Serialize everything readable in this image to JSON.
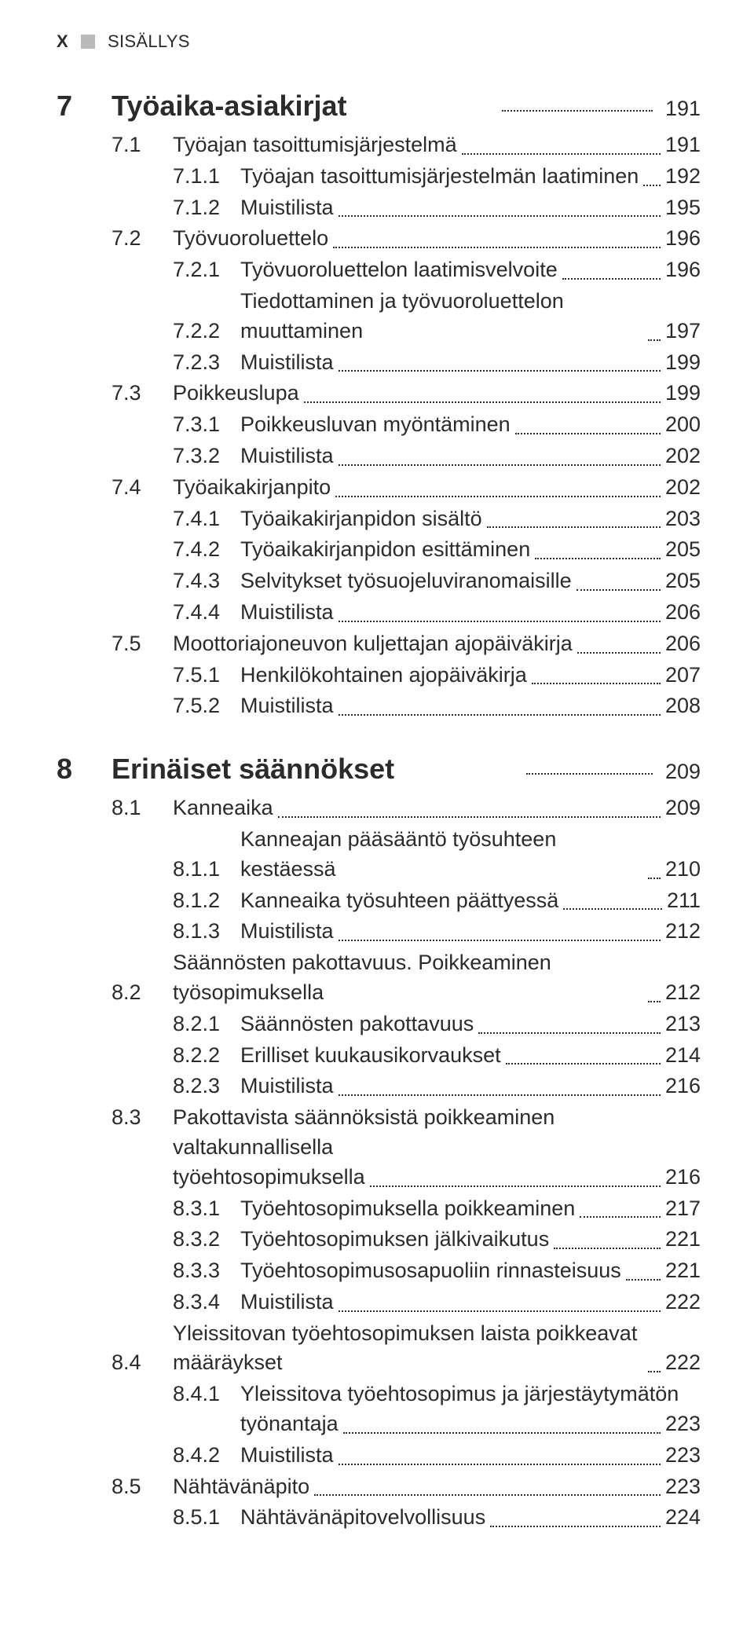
{
  "header": {
    "page_mark": "X",
    "label": "SISÄLLYS"
  },
  "chapters": [
    {
      "num": "7",
      "title": "Työaika-asiakirjat",
      "page": "191",
      "entries": [
        {
          "lvl": 1,
          "num": "7.1",
          "title": "Työajan tasoittumisjärjestelmä",
          "page": "191"
        },
        {
          "lvl": 2,
          "num": "7.1.1",
          "title": "Työajan tasoittumisjärjestelmän laatiminen",
          "page": "192"
        },
        {
          "lvl": 2,
          "num": "7.1.2",
          "title": "Muistilista",
          "page": "195"
        },
        {
          "lvl": 1,
          "num": "7.2",
          "title": "Työvuoroluettelo",
          "page": "196"
        },
        {
          "lvl": 2,
          "num": "7.2.1",
          "title": "Työvuoroluettelon laatimisvelvoite",
          "page": "196"
        },
        {
          "lvl": 2,
          "num": "7.2.2",
          "title": "Tiedottaminen ja työvuoroluettelon muuttaminen",
          "page": "197"
        },
        {
          "lvl": 2,
          "num": "7.2.3",
          "title": "Muistilista",
          "page": "199"
        },
        {
          "lvl": 1,
          "num": "7.3",
          "title": "Poikkeuslupa",
          "page": "199"
        },
        {
          "lvl": 2,
          "num": "7.3.1",
          "title": "Poikkeusluvan myöntäminen",
          "page": "200"
        },
        {
          "lvl": 2,
          "num": "7.3.2",
          "title": "Muistilista",
          "page": "202"
        },
        {
          "lvl": 1,
          "num": "7.4",
          "title": "Työaikakirjanpito",
          "page": "202"
        },
        {
          "lvl": 2,
          "num": "7.4.1",
          "title": "Työaikakirjanpidon sisältö",
          "page": "203"
        },
        {
          "lvl": 2,
          "num": "7.4.2",
          "title": "Työaikakirjanpidon esittäminen",
          "page": "205"
        },
        {
          "lvl": 2,
          "num": "7.4.3",
          "title": "Selvitykset työsuojeluviranomaisille",
          "page": "205"
        },
        {
          "lvl": 2,
          "num": "7.4.4",
          "title": "Muistilista",
          "page": "206"
        },
        {
          "lvl": 1,
          "num": "7.5",
          "title": "Moottoriajoneuvon kuljettajan ajopäiväkirja",
          "page": "206"
        },
        {
          "lvl": 2,
          "num": "7.5.1",
          "title": "Henkilökohtainen ajopäiväkirja",
          "page": "207"
        },
        {
          "lvl": 2,
          "num": "7.5.2",
          "title": "Muistilista",
          "page": "208"
        }
      ]
    },
    {
      "num": "8",
      "title": "Erinäiset säännökset",
      "page": "209",
      "entries": [
        {
          "lvl": 1,
          "num": "8.1",
          "title": "Kanneaika",
          "page": "209"
        },
        {
          "lvl": 2,
          "num": "8.1.1",
          "title": "Kanneajan pääsääntö työsuhteen kestäessä",
          "page": "210"
        },
        {
          "lvl": 2,
          "num": "8.1.2",
          "title": "Kanneaika työsuhteen päättyessä",
          "page": "211"
        },
        {
          "lvl": 2,
          "num": "8.1.3",
          "title": "Muistilista",
          "page": "212"
        },
        {
          "lvl": 1,
          "num": "8.2",
          "title": "Säännösten pakottavuus. Poikkeaminen työsopimuksella",
          "page": "212"
        },
        {
          "lvl": 2,
          "num": "8.2.1",
          "title": "Säännösten pakottavuus",
          "page": "213"
        },
        {
          "lvl": 2,
          "num": "8.2.2",
          "title": "Erilliset kuukausikorvaukset",
          "page": "214"
        },
        {
          "lvl": 2,
          "num": "8.2.3",
          "title": "Muistilista",
          "page": "216"
        },
        {
          "lvl": 1,
          "num": "8.3",
          "title_line1": "Pakottavista säännöksistä poikkeaminen valtakunnallisella",
          "title_line2": "työehtosopimuksella",
          "page": "216",
          "multiline": true
        },
        {
          "lvl": 2,
          "num": "8.3.1",
          "title": "Työehtosopimuksella poikkeaminen",
          "page": "217"
        },
        {
          "lvl": 2,
          "num": "8.3.2",
          "title": "Työehtosopimuksen jälkivaikutus",
          "page": "221"
        },
        {
          "lvl": 2,
          "num": "8.3.3",
          "title": "Työehtosopimusosapuoliin rinnasteisuus",
          "page": "221"
        },
        {
          "lvl": 2,
          "num": "8.3.4",
          "title": "Muistilista",
          "page": "222"
        },
        {
          "lvl": 1,
          "num": "8.4",
          "title": "Yleissitovan työehtosopimuksen laista poikkeavat määräykset",
          "page": "222"
        },
        {
          "lvl": 2,
          "num": "8.4.1",
          "title_line1": "Yleissitova työehtosopimus ja järjestäytymätön",
          "title_line2": "työnantaja",
          "page": "223",
          "multiline": true
        },
        {
          "lvl": 2,
          "num": "8.4.2",
          "title": "Muistilista",
          "page": "223"
        },
        {
          "lvl": 1,
          "num": "8.5",
          "title": "Nähtävänäpito",
          "page": "223"
        },
        {
          "lvl": 2,
          "num": "8.5.1",
          "title": "Nähtävänäpitovelvollisuus",
          "page": "224"
        }
      ]
    }
  ]
}
